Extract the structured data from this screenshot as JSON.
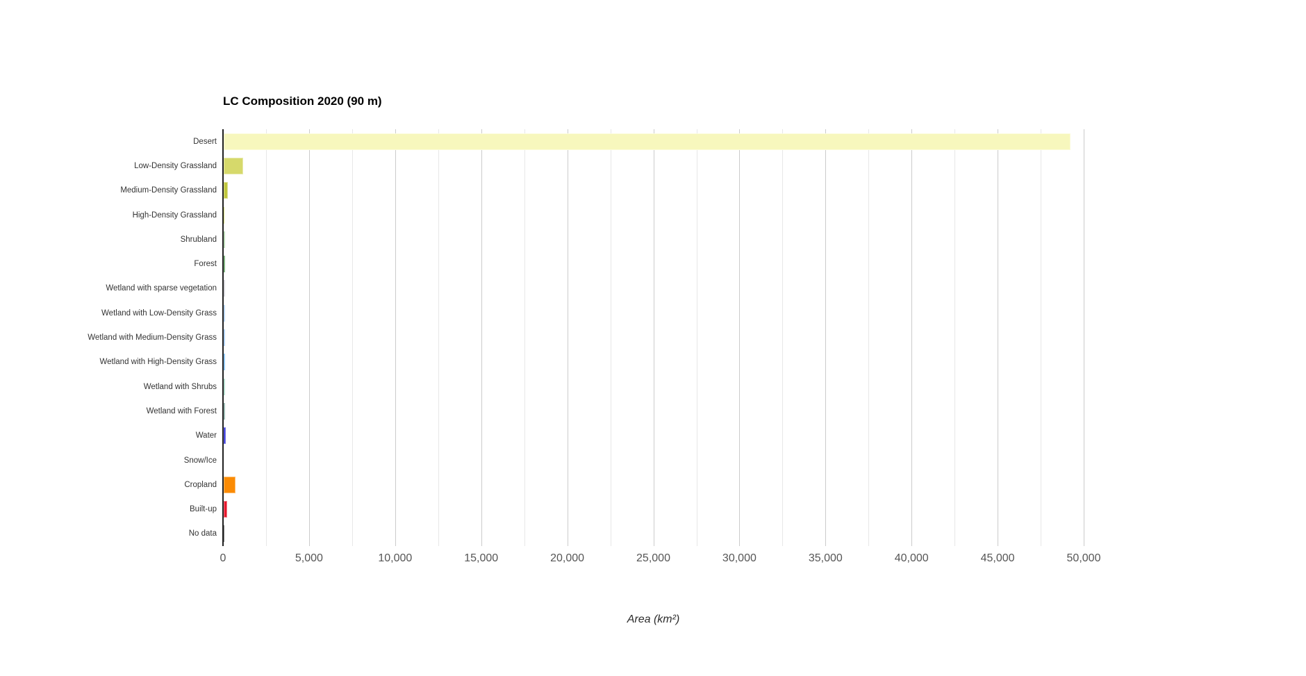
{
  "page": {
    "background": "#ffffff"
  },
  "chart_data": {
    "type": "bar",
    "orientation": "horizontal",
    "title": "LC Composition 2020 (90 m)",
    "xlabel": "Area (km²)",
    "ylabel": "",
    "legend": "none",
    "grid": true,
    "xlim": [
      0,
      50200
    ],
    "x_tick_values": [
      0,
      5000,
      10000,
      15000,
      20000,
      25000,
      30000,
      35000,
      40000,
      45000,
      50000
    ],
    "x_tick_labels": [
      "0",
      "5,000",
      "10,000",
      "15,000",
      "20,000",
      "25,000",
      "30,000",
      "35,000",
      "40,000",
      "45,000",
      "50,000"
    ],
    "minor_grid_step": 2500,
    "categories": [
      "Desert",
      "Low-Density Grassland",
      "Medium-Density Grassland",
      "High-Density Grassland",
      "Shrubland",
      "Forest",
      "Wetland with sparse vegetation",
      "Wetland with Low-Density Grass",
      "Wetland with Medium-Density Grass",
      "Wetland with High-Density Grass",
      "Wetland with Shrubs",
      "Wetland with Forest",
      "Water",
      "Snow/Ice",
      "Cropland",
      "Built-up",
      "No data"
    ],
    "values": [
      49200,
      1130,
      250,
      60,
      70,
      80,
      95,
      80,
      80,
      100,
      85,
      80,
      120,
      10,
      670,
      190,
      20
    ],
    "colors": [
      "#f7f7bd",
      "#d6d96b",
      "#bfc63d",
      "#b9c513",
      "#87be80",
      "#1f7d1f",
      "#b8b8c0",
      "#88b9e9",
      "#75b1f2",
      "#3fa0fa",
      "#7fc7ac",
      "#538a7c",
      "#1d1dd3",
      "#ffffff",
      "#fb8b04",
      "#e7182d",
      "#111111"
    ],
    "style": {
      "axis_color": "#202020",
      "major_grid_color": "#cbcbcb",
      "minor_grid_color": "#e7e7e7",
      "title_color": "#000000",
      "y_label_color": "#333333",
      "x_tick_color": "#555555",
      "axis_title_color": "#2b2b2b"
    }
  }
}
